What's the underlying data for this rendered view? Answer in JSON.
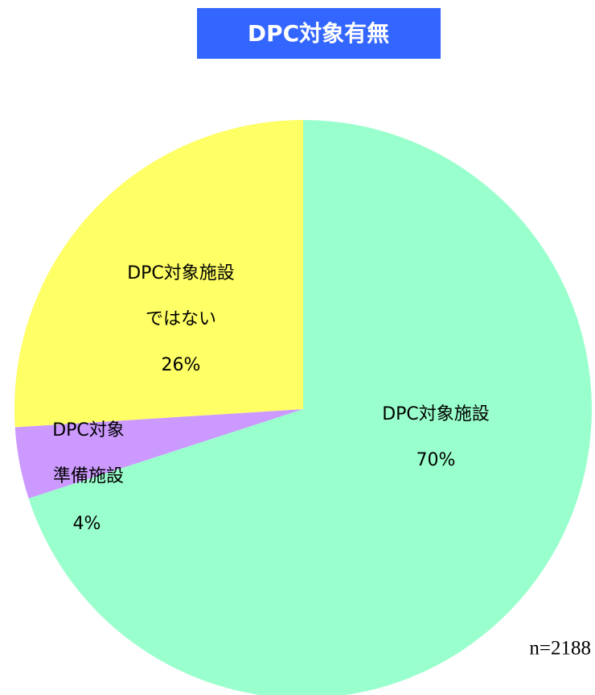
{
  "chart_data": {
    "type": "pie",
    "title": "DPC対象有無",
    "categories": [
      [
        "DPC対象施設"
      ],
      [
        "DPC対象",
        "準備施設"
      ],
      [
        "DPC対象施設",
        "ではない"
      ]
    ],
    "values": [
      70,
      4,
      26
    ],
    "value_labels": [
      "70%",
      "4%",
      "26%"
    ],
    "colors": [
      "#99ffcc",
      "#cc99ff",
      "#ffff66"
    ],
    "annotation": "n=2188"
  }
}
